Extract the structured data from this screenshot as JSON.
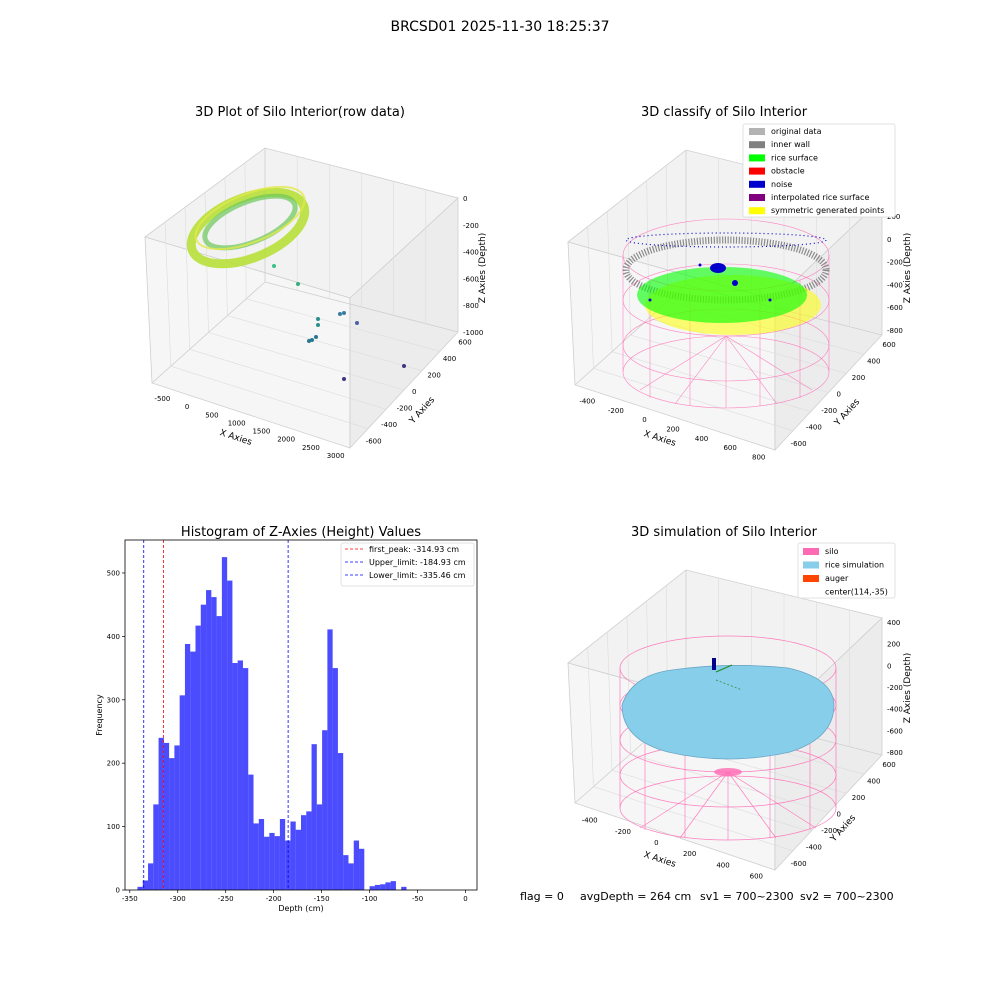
{
  "suptitle": "BRCSD01 2025-11-30 18:25:37",
  "footer": {
    "flag": "flag = 0",
    "avg": "avgDepth = 264 cm",
    "sv1": "sv1 = 700~2300",
    "sv2": "sv2 = 700~2300"
  },
  "colors": {
    "hist_bar": "#0000ff",
    "first_peak": "#ff0000",
    "limits": "#0000ff",
    "silo": "#ff69b4",
    "rice": "#87ceeb",
    "auger": "#ff4500",
    "rice_surface": "#00ff00",
    "noise": "#0000cd",
    "inner_wall": "#808080",
    "symmetric": "#ffff00"
  },
  "panels": {
    "raw": {
      "title": "3D Plot of Silo Interior(row data)",
      "xlabel": "X Axies",
      "ylabel": "Y Axies",
      "zlabel": "Z Axies (Depth)",
      "xticks": [
        "-500",
        "0",
        "500",
        "1000",
        "1500",
        "2000",
        "2500",
        "3000"
      ],
      "yticks": [
        "-600",
        "-400",
        "-200",
        "0",
        "200",
        "400",
        "600"
      ],
      "zticks": [
        "0",
        "-200",
        "-400",
        "-600",
        "-800",
        "-1000"
      ]
    },
    "classify": {
      "title": "3D classify of Silo Interior",
      "xlabel": "X Axies",
      "ylabel": "Y Axies",
      "zlabel": "Z Axies (Depth)",
      "xticks": [
        "-400",
        "-200",
        "0",
        "200",
        "400",
        "600",
        "800"
      ],
      "yticks": [
        "-600",
        "-400",
        "-200",
        "0",
        "200",
        "400",
        "600"
      ],
      "zticks": [
        "200",
        "0",
        "-200",
        "-400",
        "-600",
        "-800"
      ],
      "legend": [
        {
          "label": "original data",
          "color": "#b3b3b3"
        },
        {
          "label": "inner wall",
          "color": "#808080"
        },
        {
          "label": "rice surface",
          "color": "#00ff00"
        },
        {
          "label": "obstacle",
          "color": "#ff0000"
        },
        {
          "label": "noise",
          "color": "#0000cd"
        },
        {
          "label": "interpolated rice surface",
          "color": "#800080"
        },
        {
          "label": "symmetric generated points",
          "color": "#ffff00"
        }
      ]
    },
    "sim": {
      "title": "3D simulation of Silo Interior",
      "xlabel": "X Axies",
      "ylabel": "Y Axies",
      "zlabel": "Z Axies (Depth)",
      "xticks": [
        "-400",
        "-200",
        "0",
        "200",
        "400",
        "600"
      ],
      "yticks": [
        "-600",
        "-400",
        "-200",
        "0",
        "200",
        "400",
        "600"
      ],
      "zticks": [
        "400",
        "200",
        "0",
        "-200",
        "-400",
        "-600",
        "-800"
      ],
      "legend": [
        {
          "label": "silo",
          "color": "#ff69b4"
        },
        {
          "label": "rice simulation",
          "color": "#87ceeb"
        },
        {
          "label": "auger",
          "color": "#ff4500"
        },
        {
          "label": "center(114,-35)",
          "color": ""
        }
      ]
    }
  },
  "chart_data": {
    "type": "bar",
    "title": "Histogram of Z-Axies (Height) Values",
    "xlabel": "Depth (cm)",
    "ylabel": "Frequency",
    "xlim": [
      -355,
      12
    ],
    "ylim": [
      0,
      552
    ],
    "bin_start": -342,
    "bin_width": 5.5,
    "values": [
      5,
      15,
      42,
      135,
      240,
      232,
      208,
      228,
      307,
      388,
      376,
      417,
      450,
      473,
      462,
      432,
      525,
      488,
      358,
      362,
      350,
      182,
      105,
      112,
      84,
      90,
      85,
      112,
      78,
      108,
      95,
      118,
      124,
      230,
      135,
      252,
      411,
      350,
      216,
      55,
      42,
      78,
      65,
      0,
      6,
      8,
      9,
      12,
      14,
      0,
      5
    ],
    "xticks": [
      -350,
      -300,
      -250,
      -200,
      -150,
      -100,
      -50,
      0
    ],
    "yticks": [
      0,
      100,
      200,
      300,
      400,
      500
    ],
    "lines": [
      {
        "label": "first_peak: -314.93 cm",
        "x": -314.93,
        "color": "#ff0000"
      },
      {
        "label": "Upper_limit: -184.93 cm",
        "x": -184.93,
        "color": "#0000ff"
      },
      {
        "label": "Lower_limit: -335.46 cm",
        "x": -335.46,
        "color": "#0000ff"
      }
    ]
  }
}
